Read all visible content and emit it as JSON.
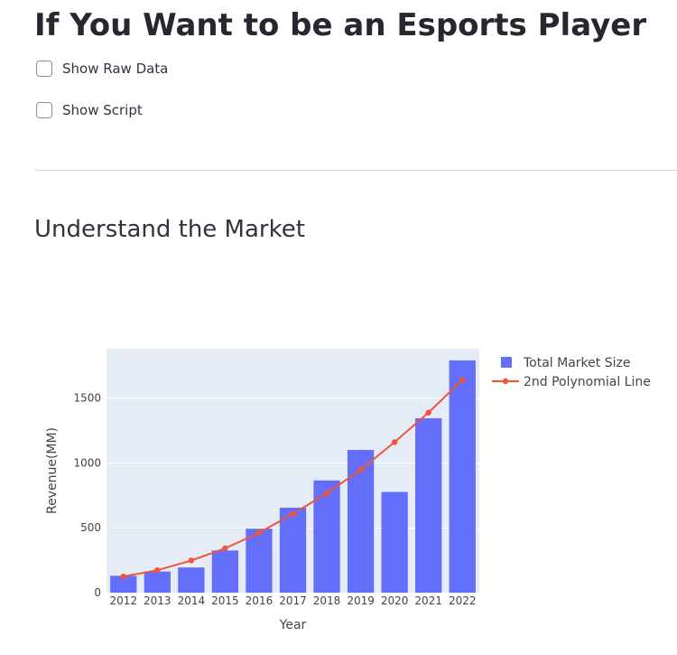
{
  "page": {
    "title": "If You Want to be an Esports Player",
    "section_header": "Understand the Market"
  },
  "controls": {
    "show_raw_data": {
      "label": "Show Raw Data",
      "checked": false
    },
    "show_script": {
      "label": "Show Script",
      "checked": false
    }
  },
  "colors": {
    "bar": "#636efa",
    "line": "#ef553b",
    "plot_bg": "#e5ecf6",
    "text": "#262730"
  },
  "chart_data": {
    "type": "bar",
    "title": "",
    "xlabel": "Year",
    "ylabel": "Revenue(MM)",
    "categories": [
      "2012",
      "2013",
      "2014",
      "2015",
      "2016",
      "2017",
      "2018",
      "2019",
      "2020",
      "2021",
      "2022"
    ],
    "series": [
      {
        "name": "Total Market Size",
        "kind": "bar",
        "values": [
          130,
          163,
          194,
          325,
          493,
          655,
          865,
          1100,
          776,
          1344,
          1790
        ]
      },
      {
        "name": "2nd Polynomial Line",
        "kind": "line+markers",
        "values": [
          125,
          173,
          248,
          342,
          461,
          607,
          766,
          948,
          1160,
          1388,
          1640
        ]
      }
    ],
    "ylim": [
      0,
      1880
    ],
    "yticks": [
      0,
      500,
      1000,
      1500
    ],
    "grid": true,
    "legend": "top-right"
  }
}
